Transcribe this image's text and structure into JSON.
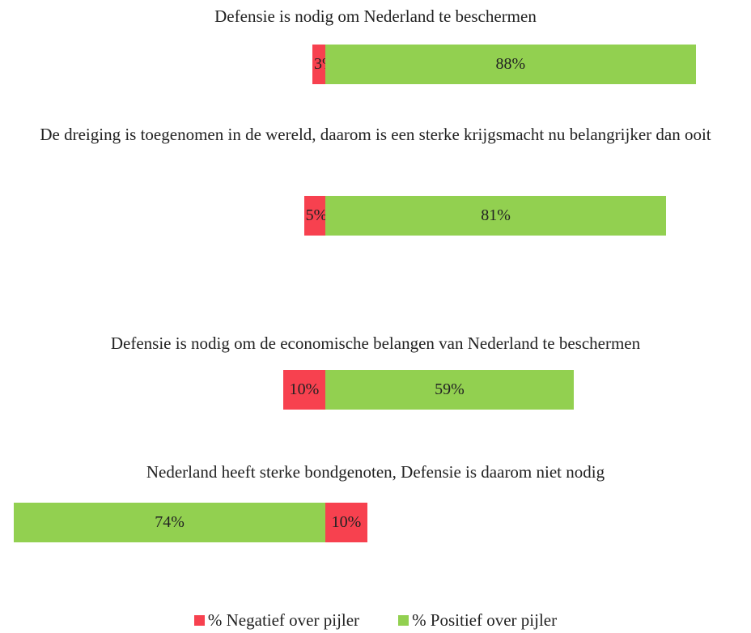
{
  "chart_data": {
    "type": "diverging-bar",
    "categories": [
      "Defensie is nodig om Nederland te beschermen",
      "De dreiging is toegenomen in de wereld, daarom is een sterke krijgsmacht nu belangrijker dan ooit",
      "Defensie is nodig om de economische belangen van Nederland te beschermen",
      "Nederland heeft sterke bondgenoten, Defensie is daarom niet nodig"
    ],
    "reversed": [
      false,
      false,
      false,
      true
    ],
    "series": [
      {
        "name": "% Negatief over pijler",
        "color": "#f7414f",
        "values": [
          3,
          5,
          10,
          10
        ],
        "value_labels": [
          "3%",
          "5%",
          "10%",
          "10%"
        ]
      },
      {
        "name": "% Positief over pijler",
        "color": "#92d050",
        "values": [
          88,
          81,
          59,
          74
        ],
        "value_labels": [
          "88%",
          "81%",
          "59%",
          "74%"
        ]
      }
    ]
  }
}
